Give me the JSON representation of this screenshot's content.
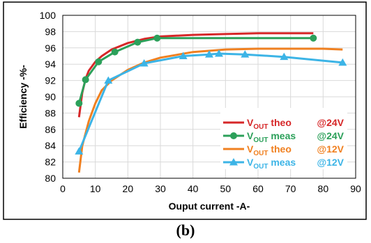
{
  "chart_data": {
    "type": "line",
    "title": "",
    "xlabel": "Ouput current -A-",
    "ylabel": "Efficiency -%-",
    "xlim": [
      0,
      90
    ],
    "ylim": [
      80,
      100
    ],
    "xticks": [
      0,
      10,
      20,
      30,
      40,
      50,
      60,
      70,
      80,
      90
    ],
    "yticks": [
      80,
      82,
      84,
      86,
      88,
      90,
      92,
      94,
      96,
      98,
      100
    ],
    "grid": true,
    "legend_position": "bottom-right",
    "series": [
      {
        "name": "V",
        "sub": "OUT",
        "suffix": " theo",
        "cond": "@24V",
        "color": "#d62728",
        "marker": "none",
        "x": [
          5,
          6,
          7,
          8,
          10,
          12,
          15,
          20,
          25,
          30,
          40,
          50,
          60,
          70,
          77
        ],
        "y": [
          87.5,
          90.5,
          92.2,
          93.2,
          94.3,
          95.0,
          95.8,
          96.6,
          97.1,
          97.4,
          97.6,
          97.7,
          97.8,
          97.8,
          97.8
        ]
      },
      {
        "name": "V",
        "sub": "OUT",
        "suffix": " meas",
        "cond": "@24V",
        "color": "#2ca05a",
        "marker": "circle",
        "x": [
          5,
          7,
          11,
          16,
          23,
          29,
          77
        ],
        "y": [
          89.2,
          92.1,
          94.3,
          95.5,
          96.7,
          97.2,
          97.2
        ]
      },
      {
        "name": "V",
        "sub": "OUT",
        "suffix": " theo",
        "cond": "@12V",
        "color": "#f08020",
        "marker": "none",
        "x": [
          5,
          6,
          8,
          10,
          12,
          15,
          20,
          25,
          30,
          40,
          50,
          60,
          70,
          80,
          86
        ],
        "y": [
          80.7,
          84.0,
          87.0,
          89.2,
          90.8,
          92.0,
          93.3,
          94.2,
          94.8,
          95.5,
          95.8,
          95.9,
          95.9,
          95.9,
          95.8
        ]
      },
      {
        "name": "V",
        "sub": "OUT",
        "suffix": " meas",
        "cond": "@12V",
        "color": "#3cb4e6",
        "marker": "triangle",
        "x": [
          5,
          14,
          25,
          37,
          45,
          48,
          56,
          68,
          86
        ],
        "y": [
          83.3,
          92.0,
          94.1,
          95.0,
          95.2,
          95.3,
          95.2,
          94.9,
          94.2
        ]
      }
    ]
  },
  "caption": "(b)"
}
